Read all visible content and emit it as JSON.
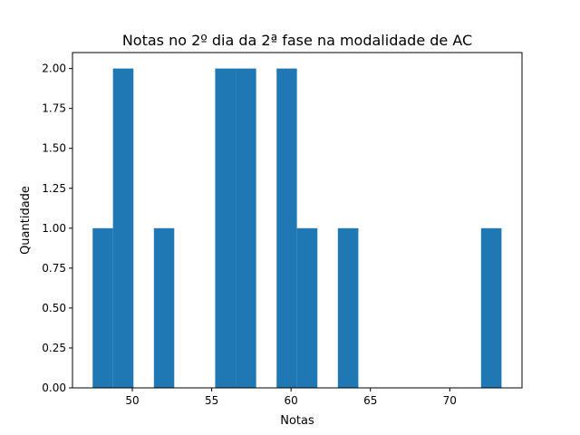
{
  "chart_data": {
    "type": "bar",
    "title": "Notas no 2º dia da 2ª fase na modalidade de AC",
    "xlabel": "Notas",
    "ylabel": "Quantidade",
    "xlim": [
      46.23,
      74.55
    ],
    "ylim": [
      0,
      2.1
    ],
    "xticks": [
      50,
      55,
      60,
      65,
      70
    ],
    "yticks": [
      0.0,
      0.25,
      0.5,
      0.75,
      1.0,
      1.25,
      1.5,
      1.75,
      2.0
    ],
    "xtick_labels": [
      "50",
      "55",
      "60",
      "65",
      "70"
    ],
    "ytick_labels": [
      "0.00",
      "0.25",
      "0.50",
      "0.75",
      "1.00",
      "1.25",
      "1.50",
      "1.75",
      "2.00"
    ],
    "bins": [
      {
        "x0": 47.5,
        "x1": 48.78,
        "value": 1
      },
      {
        "x0": 48.78,
        "x1": 50.07,
        "value": 2
      },
      {
        "x0": 51.36,
        "x1": 52.64,
        "value": 1
      },
      {
        "x0": 55.22,
        "x1": 56.51,
        "value": 2
      },
      {
        "x0": 56.51,
        "x1": 57.8,
        "value": 2
      },
      {
        "x0": 59.09,
        "x1": 60.37,
        "value": 2
      },
      {
        "x0": 60.37,
        "x1": 61.66,
        "value": 1
      },
      {
        "x0": 62.95,
        "x1": 64.24,
        "value": 1
      },
      {
        "x0": 71.97,
        "x1": 73.26,
        "value": 1
      }
    ],
    "bar_color": "#1f77b4",
    "grid": false,
    "legend": false
  }
}
